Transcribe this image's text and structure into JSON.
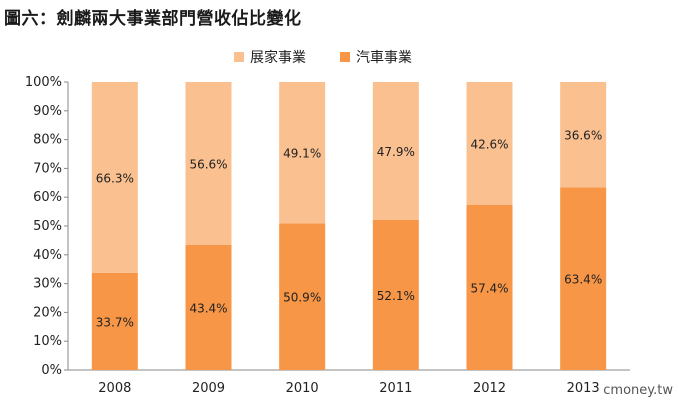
{
  "title": "圖六：劍麟兩大事業部門營收佔比變化",
  "watermark": "cmoney.tw",
  "chart_data": {
    "type": "bar",
    "stacked": true,
    "categories": [
      "2008",
      "2009",
      "2010",
      "2011",
      "2012",
      "2013"
    ],
    "series": [
      {
        "name": "汽車事業",
        "values": [
          33.7,
          43.4,
          50.9,
          52.1,
          57.4,
          63.4
        ],
        "labels": [
          "33.7%",
          "43.4%",
          "50.9%",
          "52.1%",
          "57.4%",
          "63.4%"
        ],
        "color": "#f79646"
      },
      {
        "name": "展家事業",
        "values": [
          66.3,
          56.6,
          49.1,
          47.9,
          42.6,
          36.6
        ],
        "labels": [
          "66.3%",
          "56.6%",
          "49.1%",
          "47.9%",
          "42.6%",
          "36.6%"
        ],
        "color": "#fac090"
      }
    ],
    "ylim": [
      0,
      100
    ],
    "yticks": [
      "0%",
      "10%",
      "20%",
      "30%",
      "40%",
      "50%",
      "60%",
      "70%",
      "80%",
      "90%",
      "100%"
    ],
    "legend_position": "top"
  }
}
